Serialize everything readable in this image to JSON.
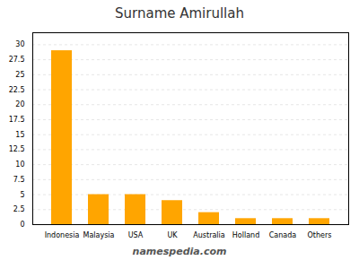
{
  "chart_data": {
    "type": "bar",
    "title": "Surname Amirullah",
    "categories": [
      "Indonesia",
      "Malaysia",
      "USA",
      "UK",
      "Australia",
      "Holland",
      "Canada",
      "Others"
    ],
    "values": [
      29,
      5,
      5,
      4,
      2,
      1,
      1,
      1
    ],
    "color": "#FFA500",
    "ylim": [
      0,
      32
    ],
    "yticks": [
      0,
      2.5,
      5,
      7.5,
      10,
      12.5,
      15,
      17.5,
      20,
      22.5,
      25,
      27.5,
      30
    ],
    "grid": true,
    "caption": "namespedia.com"
  }
}
